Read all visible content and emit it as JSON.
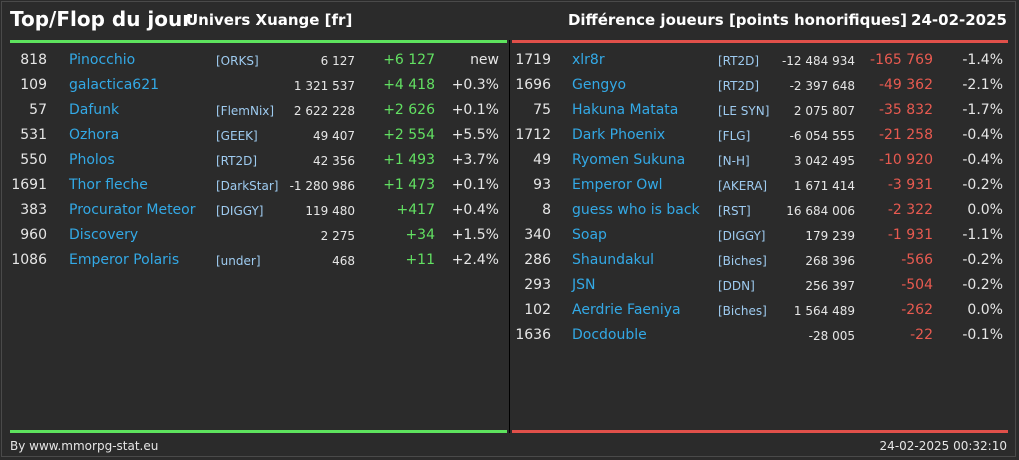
{
  "header": {
    "title": "Top/Flop du jour",
    "universe": "Univers Xuange [fr]",
    "metric": "Différence joueurs [points honorifiques]",
    "date": "24-02-2025"
  },
  "colors": {
    "top": "#5ee35e",
    "flop": "#e0504a",
    "link": "#33a9e6"
  },
  "top": [
    {
      "rank": "818",
      "name": "Pinocchio",
      "guild": "[ORKS]",
      "total": "6 127",
      "diff": "+6 127",
      "pct": "new"
    },
    {
      "rank": "109",
      "name": "galactica621",
      "guild": "",
      "total": "1 321 537",
      "diff": "+4 418",
      "pct": "+0.3%"
    },
    {
      "rank": "57",
      "name": "Dafunk",
      "guild": "[FlemNix]",
      "total": "2 622 228",
      "diff": "+2 626",
      "pct": "+0.1%"
    },
    {
      "rank": "531",
      "name": "Ozhora",
      "guild": "[GEEK]",
      "total": "49 407",
      "diff": "+2 554",
      "pct": "+5.5%"
    },
    {
      "rank": "550",
      "name": "Pholos",
      "guild": "[RT2D]",
      "total": "42 356",
      "diff": "+1 493",
      "pct": "+3.7%"
    },
    {
      "rank": "1691",
      "name": "Thor fleche",
      "guild": "[DarkStar]",
      "total": "-1 280 986",
      "diff": "+1 473",
      "pct": "+0.1%"
    },
    {
      "rank": "383",
      "name": "Procurator Meteor",
      "guild": "[DIGGY]",
      "total": "119 480",
      "diff": "+417",
      "pct": "+0.4%"
    },
    {
      "rank": "960",
      "name": "Discovery",
      "guild": "",
      "total": "2 275",
      "diff": "+34",
      "pct": "+1.5%"
    },
    {
      "rank": "1086",
      "name": "Emperor Polaris",
      "guild": "[under]",
      "total": "468",
      "diff": "+11",
      "pct": "+2.4%"
    }
  ],
  "flop": [
    {
      "rank": "1719",
      "name": "xlr8r",
      "guild": "[RT2D]",
      "total": "-12 484 934",
      "diff": "-165 769",
      "pct": "-1.4%"
    },
    {
      "rank": "1696",
      "name": "Gengyo",
      "guild": "[RT2D]",
      "total": "-2 397 648",
      "diff": "-49 362",
      "pct": "-2.1%"
    },
    {
      "rank": "75",
      "name": "Hakuna Matata",
      "guild": "[LE SYN]",
      "total": "2 075 807",
      "diff": "-35 832",
      "pct": "-1.7%"
    },
    {
      "rank": "1712",
      "name": "Dark Phoenix",
      "guild": "[FLG]",
      "total": "-6 054 555",
      "diff": "-21 258",
      "pct": "-0.4%"
    },
    {
      "rank": "49",
      "name": "Ryomen Sukuna",
      "guild": "[N-H]",
      "total": "3 042 495",
      "diff": "-10 920",
      "pct": "-0.4%"
    },
    {
      "rank": "93",
      "name": "Emperor Owl",
      "guild": "[AKERA]",
      "total": "1 671 414",
      "diff": "-3 931",
      "pct": "-0.2%"
    },
    {
      "rank": "8",
      "name": "guess who is back",
      "guild": "[RST]",
      "total": "16 684 006",
      "diff": "-2 322",
      "pct": "0.0%"
    },
    {
      "rank": "340",
      "name": "Soap",
      "guild": "[DIGGY]",
      "total": "179 239",
      "diff": "-1 931",
      "pct": "-1.1%"
    },
    {
      "rank": "286",
      "name": "Shaundakul",
      "guild": "[Biches]",
      "total": "268 396",
      "diff": "-566",
      "pct": "-0.2%"
    },
    {
      "rank": "293",
      "name": "JSN",
      "guild": "[DDN]",
      "total": "256 397",
      "diff": "-504",
      "pct": "-0.2%"
    },
    {
      "rank": "102",
      "name": "Aerdrie Faeniya",
      "guild": "[Biches]",
      "total": "1 564 489",
      "diff": "-262",
      "pct": "0.0%"
    },
    {
      "rank": "1636",
      "name": "Docdouble",
      "guild": "",
      "total": "-28 005",
      "diff": "-22",
      "pct": "-0.1%"
    }
  ],
  "footer": {
    "credit": "By www.mmorpg-stat.eu",
    "timestamp": "24-02-2025 00:32:10"
  }
}
